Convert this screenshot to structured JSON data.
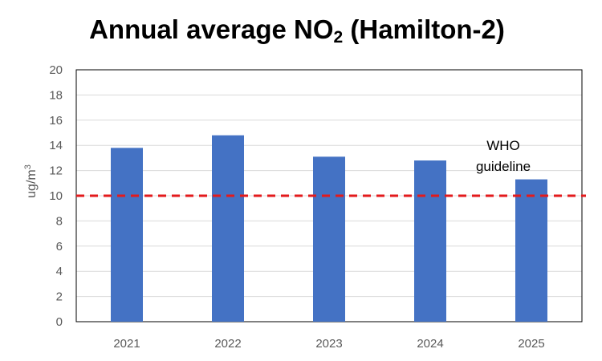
{
  "chart_data": {
    "type": "bar",
    "title_main": "Annual average NO",
    "title_sub": "2",
    "title_tail": " (Hamilton-2)",
    "xlabel": "",
    "ylabel": "ug/m",
    "ylabel_sup": "3",
    "categories": [
      "2021",
      "2022",
      "2023",
      "2024",
      "2025"
    ],
    "series": [
      {
        "values": [
          13.8,
          14.8,
          13.1,
          12.8,
          11.3
        ]
      }
    ],
    "ylim": [
      0,
      20
    ],
    "yticks": [
      "0",
      "2",
      "4",
      "6",
      "8",
      "10",
      "12",
      "14",
      "16",
      "18",
      "20"
    ],
    "grid": true,
    "reference_line": {
      "value": 10,
      "label_lines": [
        "WHO",
        "guideline"
      ],
      "color": "#e31a1c",
      "style": "dashed"
    },
    "bar_color": "#4472c4",
    "gridline_color": "#d9d9d9"
  }
}
